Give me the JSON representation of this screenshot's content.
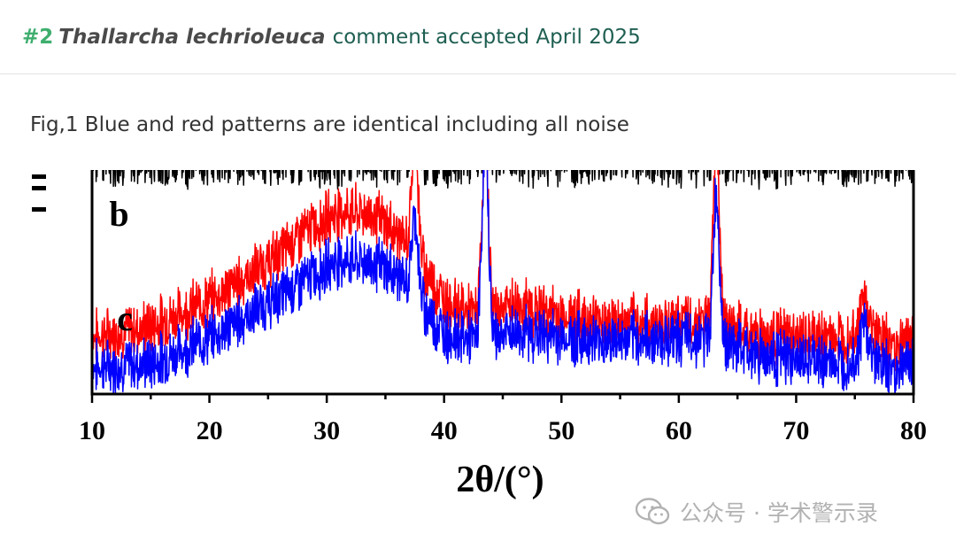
{
  "header": {
    "number": "#2",
    "species": "Thallarcha lechrioleuca",
    "status_text": "comment accepted April 2025"
  },
  "caption": "Fig,1 Blue and red patterns are identical including all noise",
  "watermark": {
    "text": "公众号 · 学术警示录",
    "icon": "wechat-icon"
  },
  "chart_data": {
    "type": "line",
    "xlabel": "2θ/(°)",
    "ylabel": "",
    "xlim": [
      10,
      80
    ],
    "x_ticks": [
      10,
      20,
      30,
      40,
      50,
      60,
      70,
      80
    ],
    "x_tick_labels": [
      "10",
      "20",
      "30",
      "40",
      "50",
      "60",
      "70",
      "80"
    ],
    "grid": false,
    "series": [
      {
        "name": "",
        "color": "#000000",
        "profile": [
          [
            10,
            1.18
          ],
          [
            20,
            1.18
          ],
          [
            30,
            1.18
          ],
          [
            40,
            1.18
          ],
          [
            50,
            1.18
          ],
          [
            60,
            1.18
          ],
          [
            70,
            1.18
          ],
          [
            80,
            1.18
          ]
        ],
        "peaks": [
          [
            37.5,
            1.3
          ],
          [
            43.5,
            1.3
          ],
          [
            63.2,
            1.3
          ]
        ]
      },
      {
        "name": "",
        "color": "#ff0000",
        "profile": [
          [
            10,
            0.22
          ],
          [
            15,
            0.28
          ],
          [
            20,
            0.42
          ],
          [
            25,
            0.62
          ],
          [
            28,
            0.78
          ],
          [
            31,
            0.9
          ],
          [
            34,
            0.88
          ],
          [
            36,
            0.78
          ],
          [
            38,
            0.62
          ],
          [
            40,
            0.42
          ],
          [
            43,
            0.33
          ],
          [
            46,
            0.4
          ],
          [
            50,
            0.34
          ],
          [
            55,
            0.3
          ],
          [
            60,
            0.3
          ],
          [
            63,
            0.3
          ],
          [
            66,
            0.24
          ],
          [
            70,
            0.22
          ],
          [
            74,
            0.22
          ],
          [
            76,
            0.3
          ],
          [
            78,
            0.18
          ],
          [
            80,
            0.22
          ]
        ],
        "peaks": [
          [
            37.5,
            1.3
          ],
          [
            43.5,
            1.3
          ],
          [
            63.2,
            1.3
          ],
          [
            75.8,
            0.42
          ]
        ]
      },
      {
        "name": "",
        "color": "#0000ff",
        "profile": [
          [
            10,
            0.06
          ],
          [
            15,
            0.08
          ],
          [
            20,
            0.22
          ],
          [
            25,
            0.4
          ],
          [
            28,
            0.52
          ],
          [
            31,
            0.64
          ],
          [
            34,
            0.62
          ],
          [
            36,
            0.56
          ],
          [
            38,
            0.4
          ],
          [
            40,
            0.24
          ],
          [
            43,
            0.2
          ],
          [
            46,
            0.25
          ],
          [
            50,
            0.22
          ],
          [
            55,
            0.2
          ],
          [
            60,
            0.22
          ],
          [
            63,
            0.2
          ],
          [
            66,
            0.14
          ],
          [
            70,
            0.1
          ],
          [
            74,
            0.08
          ],
          [
            76,
            0.14
          ],
          [
            78,
            0.04
          ],
          [
            80,
            0.1
          ]
        ],
        "peaks": [
          [
            37.5,
            0.88
          ],
          [
            43.5,
            1.3
          ],
          [
            63.2,
            0.98
          ],
          [
            75.8,
            0.3
          ]
        ]
      }
    ],
    "annotations": [
      {
        "text": "b",
        "x": 12.3,
        "y": 0.88
      },
      {
        "text": "c",
        "x": 12.8,
        "y": 0.32
      }
    ]
  }
}
